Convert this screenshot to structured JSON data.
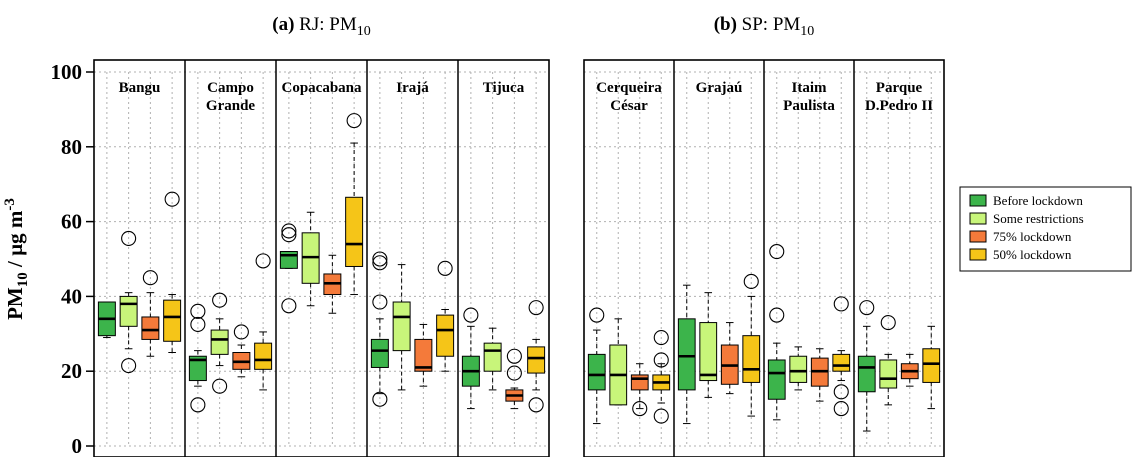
{
  "chart_data": {
    "type": "boxplot",
    "ylabel": "PM10 / µg m-3",
    "ylim": [
      0,
      100
    ],
    "yticks": [
      0,
      20,
      40,
      60,
      80,
      100
    ],
    "grid": true,
    "legend_position": "right",
    "colors": {
      "Before lockdown": "#3cb44b",
      "Some restrictions": "#c8f57a",
      "75% lockdown": "#f47a3a",
      "50% lockdown": "#f5c518"
    },
    "series_names": [
      "Before lockdown",
      "Some restrictions",
      "75% lockdown",
      "50% lockdown"
    ],
    "panels": [
      {
        "prefix": "(a)",
        "title_main": "RJ: PM",
        "title_sub": "10",
        "sites": [
          {
            "label_lines": [
              "Bangu"
            ],
            "boxes": [
              {
                "series": "Before lockdown",
                "min": 29,
                "q1": 29.5,
                "median": 34,
                "q3": 38.5,
                "max": 38.5,
                "outliers": []
              },
              {
                "series": "Some restrictions",
                "min": 26,
                "q1": 32,
                "median": 38,
                "q3": 40,
                "max": 41,
                "outliers": [
                  21.5,
                  55.5
                ]
              },
              {
                "series": "75% lockdown",
                "min": 24,
                "q1": 28.5,
                "median": 31,
                "q3": 34.5,
                "max": 41,
                "outliers": [
                  45
                ]
              },
              {
                "series": "50% lockdown",
                "min": 25,
                "q1": 28,
                "median": 34.5,
                "q3": 39,
                "max": 40.5,
                "outliers": [
                  66
                ]
              }
            ]
          },
          {
            "label_lines": [
              "Campo",
              "Grande"
            ],
            "boxes": [
              {
                "series": "Before lockdown",
                "min": 16,
                "q1": 17.5,
                "median": 23,
                "q3": 24,
                "max": 25.5,
                "outliers": [
                  11,
                  32.5,
                  36
                ]
              },
              {
                "series": "Some restrictions",
                "min": 21.5,
                "q1": 24.5,
                "median": 28.5,
                "q3": 31,
                "max": 34,
                "outliers": [
                  16,
                  39
                ]
              },
              {
                "series": "75% lockdown",
                "min": 18.5,
                "q1": 20.5,
                "median": 22.5,
                "q3": 25,
                "max": 27,
                "outliers": [
                  30.5
                ]
              },
              {
                "series": "50% lockdown",
                "min": 15,
                "q1": 20.5,
                "median": 23,
                "q3": 27.5,
                "max": 30.5,
                "outliers": [
                  49.5
                ]
              }
            ]
          },
          {
            "label_lines": [
              "Copacabana"
            ],
            "boxes": [
              {
                "series": "Before lockdown",
                "min": 47.5,
                "q1": 47.5,
                "median": 51,
                "q3": 52,
                "max": 52,
                "outliers": [
                  37.5,
                  56.5,
                  57.5
                ]
              },
              {
                "series": "Some restrictions",
                "min": 37.5,
                "q1": 43.5,
                "median": 50.5,
                "q3": 57,
                "max": 62.5,
                "outliers": []
              },
              {
                "series": "75% lockdown",
                "min": 35.5,
                "q1": 40.5,
                "median": 43.5,
                "q3": 46,
                "max": 51,
                "outliers": []
              },
              {
                "series": "50% lockdown",
                "min": 40.5,
                "q1": 48,
                "median": 54,
                "q3": 66.5,
                "max": 81,
                "outliers": [
                  87
                ]
              }
            ]
          },
          {
            "label_lines": [
              "Irajá"
            ],
            "boxes": [
              {
                "series": "Before lockdown",
                "min": 14,
                "q1": 21,
                "median": 25.5,
                "q3": 28.5,
                "max": 34,
                "outliers": [
                  12.5,
                  38.5,
                  49,
                  50
                ]
              },
              {
                "series": "Some restrictions",
                "min": 15,
                "q1": 25.5,
                "median": 34.5,
                "q3": 38.5,
                "max": 48.5,
                "outliers": []
              },
              {
                "series": "75% lockdown",
                "min": 16,
                "q1": 20,
                "median": 21,
                "q3": 28.5,
                "max": 32.5,
                "outliers": []
              },
              {
                "series": "50% lockdown",
                "min": 20,
                "q1": 24,
                "median": 31,
                "q3": 35,
                "max": 36.5,
                "outliers": [
                  47.5
                ]
              }
            ]
          },
          {
            "label_lines": [
              "Tijuca"
            ],
            "boxes": [
              {
                "series": "Before lockdown",
                "min": 10,
                "q1": 16,
                "median": 20,
                "q3": 24,
                "max": 32,
                "outliers": [
                  35
                ]
              },
              {
                "series": "Some restrictions",
                "min": 15,
                "q1": 20,
                "median": 25.5,
                "q3": 27.5,
                "max": 31.5,
                "outliers": []
              },
              {
                "series": "75% lockdown",
                "min": 10,
                "q1": 12,
                "median": 13.5,
                "q3": 15,
                "max": 15.5,
                "outliers": [
                  19.5,
                  24
                ]
              },
              {
                "series": "50% lockdown",
                "min": 15,
                "q1": 19.5,
                "median": 23.5,
                "q3": 26.5,
                "max": 28.5,
                "outliers": [
                  11,
                  37
                ]
              }
            ]
          }
        ]
      },
      {
        "prefix": "(b)",
        "title_main": "SP: PM",
        "title_sub": "10",
        "sites": [
          {
            "label_lines": [
              "Cerqueira",
              "César"
            ],
            "boxes": [
              {
                "series": "Before lockdown",
                "min": 6,
                "q1": 15,
                "median": 19,
                "q3": 24.5,
                "max": 31,
                "outliers": [
                  35
                ]
              },
              {
                "series": "Some restrictions",
                "min": 11,
                "q1": 11,
                "median": 19,
                "q3": 27,
                "max": 34,
                "outliers": []
              },
              {
                "series": "75% lockdown",
                "min": 10,
                "q1": 15,
                "median": 18,
                "q3": 19,
                "max": 22,
                "outliers": [
                  10
                ]
              },
              {
                "series": "50% lockdown",
                "min": 11.5,
                "q1": 15,
                "median": 17,
                "q3": 19,
                "max": 22,
                "outliers": [
                  8,
                  23,
                  29
                ]
              }
            ]
          },
          {
            "label_lines": [
              "Grajaú"
            ],
            "boxes": [
              {
                "series": "Before lockdown",
                "min": 6,
                "q1": 15,
                "median": 24,
                "q3": 34,
                "max": 43,
                "outliers": []
              },
              {
                "series": "Some restrictions",
                "min": 13,
                "q1": 17.5,
                "median": 19,
                "q3": 33,
                "max": 41,
                "outliers": []
              },
              {
                "series": "75% lockdown",
                "min": 14,
                "q1": 16.5,
                "median": 21.5,
                "q3": 27,
                "max": 33,
                "outliers": []
              },
              {
                "series": "50% lockdown",
                "min": 8,
                "q1": 17,
                "median": 20.5,
                "q3": 29.5,
                "max": 40,
                "outliers": [
                  44
                ]
              }
            ]
          },
          {
            "label_lines": [
              "Itaim",
              "Paulista"
            ],
            "boxes": [
              {
                "series": "Before lockdown",
                "min": 7,
                "q1": 12.5,
                "median": 19.5,
                "q3": 23,
                "max": 27.5,
                "outliers": [
                  35,
                  52
                ]
              },
              {
                "series": "Some restrictions",
                "min": 15,
                "q1": 17,
                "median": 20,
                "q3": 24,
                "max": 26.5,
                "outliers": []
              },
              {
                "series": "75% lockdown",
                "min": 12,
                "q1": 16,
                "median": 20,
                "q3": 23.5,
                "max": 26,
                "outliers": []
              },
              {
                "series": "50% lockdown",
                "min": 17.5,
                "q1": 20,
                "median": 21.5,
                "q3": 24.5,
                "max": 25.5,
                "outliers": [
                  10,
                  14.5,
                  38
                ]
              }
            ]
          },
          {
            "label_lines": [
              "Parque",
              "D.Pedro II"
            ],
            "boxes": [
              {
                "series": "Before lockdown",
                "min": 4,
                "q1": 14.5,
                "median": 21,
                "q3": 24,
                "max": 32,
                "outliers": [
                  37
                ]
              },
              {
                "series": "Some restrictions",
                "min": 11,
                "q1": 15.5,
                "median": 18,
                "q3": 23,
                "max": 24.5,
                "outliers": [
                  33
                ]
              },
              {
                "series": "75% lockdown",
                "min": 16,
                "q1": 18,
                "median": 20,
                "q3": 22,
                "max": 24.5,
                "outliers": []
              },
              {
                "series": "50% lockdown",
                "min": 10,
                "q1": 17,
                "median": 22,
                "q3": 26,
                "max": 32,
                "outliers": []
              }
            ]
          }
        ]
      }
    ]
  }
}
